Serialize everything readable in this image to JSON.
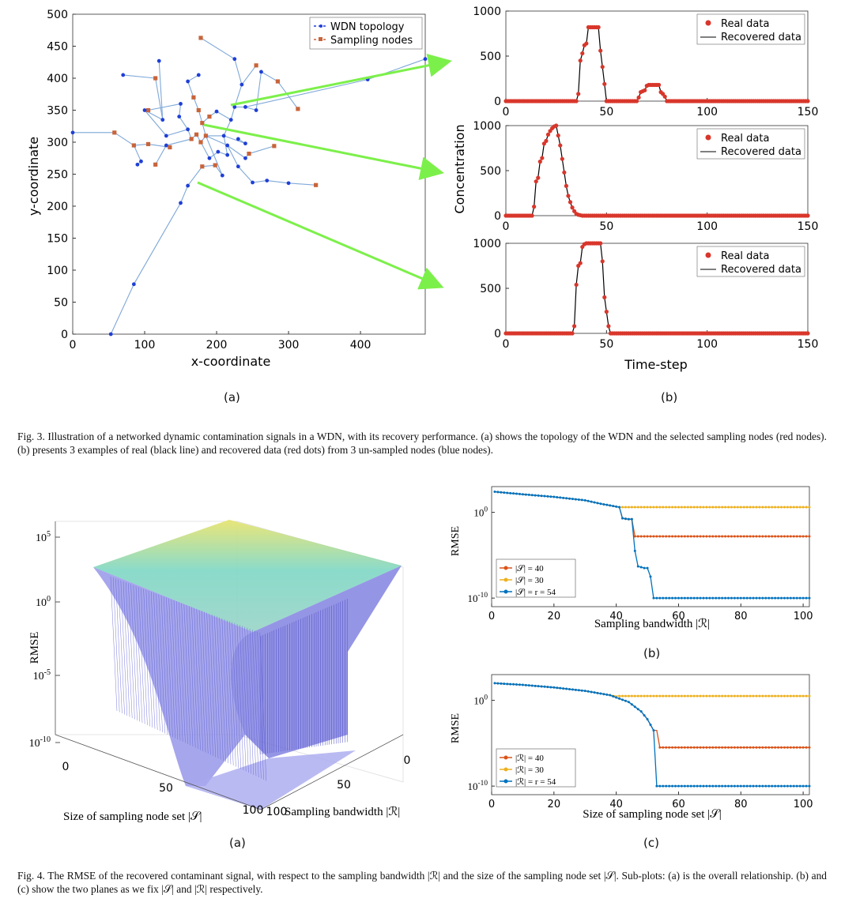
{
  "fig3": {
    "sub_a_label": "(a)",
    "sub_b_label": "(b)",
    "caption": "Fig. 3.  Illustration of a networked dynamic contamination signals in a WDN, with its recovery performance. (a) shows the topology of the WDN and the selected sampling nodes (red nodes). (b) presents 3 examples of real (black line) and recovered data (red dots) from 3 un-sampled nodes (blue nodes).",
    "topology": {
      "xlabel": "x-coordinate",
      "ylabel": "y-coordinate",
      "legend": [
        "WDN topology",
        "Sampling nodes"
      ],
      "xticks": [
        "0",
        "100",
        "200",
        "300",
        "400"
      ],
      "yticks": [
        "0",
        "50",
        "100",
        "150",
        "200",
        "250",
        "300",
        "350",
        "400",
        "450",
        "500"
      ],
      "colors": {
        "blue": "#1f3fd6",
        "red": "#c8643a",
        "line": "#7fa8d8",
        "arrow": "#7cf04a"
      }
    },
    "concentration": {
      "ylabel": "Concentration",
      "xlabel": "Time-step",
      "legend": [
        "Real data",
        "Recovered data"
      ],
      "xticks": [
        "0",
        "50",
        "100",
        "150"
      ],
      "yticks": [
        "0",
        "500",
        "1000"
      ]
    }
  },
  "fig4": {
    "sub_a_label": "(a)",
    "sub_b_label": "(b)",
    "sub_c_label": "(c)",
    "caption": "Fig. 4.  The RMSE of the recovered contaminant signal, with respect to the sampling bandwidth |ℛ| and the size of the sampling node set |𝒮|. Sub-plots: (a) is the overall relationship. (b) and (c) show the two planes as we fix |𝒮| and |ℛ| respectively.",
    "surface": {
      "zlabel": "RMSE",
      "zticks": [
        "10^5",
        "10^0",
        "10^-5",
        "10^-10"
      ],
      "xlabel": "Size of sampling node set |𝒮|",
      "ylabel": "Sampling bandwidth |ℛ|",
      "left_ticks": [
        "0",
        "50",
        "100"
      ],
      "right_ticks": [
        "0",
        "50",
        "100"
      ]
    },
    "plot_b": {
      "ylabel": "RMSE",
      "xlabel": "Sampling bandwidth |ℛ|",
      "legend": [
        "|𝒮| = 40",
        "|𝒮| = 30",
        "|𝒮| = r = 54"
      ],
      "xticks": [
        "0",
        "20",
        "40",
        "60",
        "80",
        "100"
      ],
      "yticks": [
        "10^0",
        "10^-10"
      ]
    },
    "plot_c": {
      "ylabel": "RMSE",
      "xlabel": "Size of sampling node set |𝒮|",
      "legend": [
        "|ℛ| = 40",
        "|ℛ| = 30",
        "|ℛ| = r = 54"
      ],
      "xticks": [
        "0",
        "20",
        "40",
        "60",
        "80",
        "100"
      ],
      "yticks": [
        "10^0",
        "10^-10"
      ]
    },
    "colors": {
      "s40": "#d95319",
      "s30": "#edb120",
      "s54": "#0072bd"
    }
  },
  "chart_data": [
    {
      "type": "line",
      "title": "",
      "xlabel": "Time-step",
      "ylabel": "Concentration",
      "xlim": [
        0,
        150
      ],
      "ylim": [
        0,
        1000
      ],
      "series": [
        {
          "name": "Real data",
          "x": [
            0,
            35,
            36,
            37,
            38,
            39,
            40,
            41,
            42,
            43,
            44,
            45,
            46,
            47,
            48,
            49,
            50,
            65,
            66,
            67,
            68,
            69,
            70,
            71,
            72,
            73,
            74,
            75,
            76,
            77,
            78,
            79,
            80,
            150
          ],
          "values": [
            0,
            0,
            80,
            450,
            530,
            620,
            640,
            820,
            820,
            820,
            820,
            820,
            820,
            560,
            380,
            190,
            0,
            0,
            40,
            100,
            110,
            120,
            170,
            180,
            180,
            180,
            180,
            180,
            180,
            100,
            80,
            50,
            0,
            0
          ]
        },
        {
          "name": "Recovered data",
          "x": [
            0,
            35,
            36,
            37,
            38,
            39,
            40,
            41,
            42,
            43,
            44,
            45,
            46,
            47,
            48,
            49,
            50,
            65,
            66,
            67,
            68,
            69,
            70,
            71,
            72,
            73,
            74,
            75,
            76,
            77,
            78,
            79,
            80,
            150
          ],
          "values": [
            0,
            0,
            80,
            450,
            530,
            620,
            640,
            820,
            820,
            820,
            820,
            820,
            820,
            560,
            380,
            190,
            0,
            0,
            40,
            100,
            110,
            120,
            170,
            180,
            180,
            180,
            180,
            180,
            180,
            100,
            80,
            50,
            0,
            0
          ]
        }
      ]
    },
    {
      "type": "line",
      "xlabel": "Time-step",
      "ylabel": "Concentration",
      "xlim": [
        0,
        150
      ],
      "ylim": [
        0,
        1000
      ],
      "series": [
        {
          "name": "Real data",
          "x": [
            0,
            13,
            14,
            15,
            16,
            17,
            18,
            19,
            20,
            21,
            22,
            23,
            24,
            25,
            26,
            27,
            28,
            29,
            30,
            31,
            32,
            33,
            34,
            35,
            36,
            37,
            38,
            150
          ],
          "values": [
            0,
            0,
            100,
            380,
            420,
            600,
            640,
            800,
            830,
            900,
            940,
            970,
            990,
            1000,
            890,
            780,
            630,
            480,
            330,
            220,
            150,
            90,
            50,
            20,
            10,
            5,
            0,
            0
          ]
        },
        {
          "name": "Recovered data",
          "x": [
            0,
            13,
            14,
            15,
            16,
            17,
            18,
            19,
            20,
            21,
            22,
            23,
            24,
            25,
            26,
            27,
            28,
            29,
            30,
            31,
            32,
            33,
            34,
            35,
            36,
            37,
            38,
            150
          ],
          "values": [
            0,
            0,
            100,
            380,
            420,
            600,
            640,
            800,
            830,
            900,
            940,
            970,
            990,
            1000,
            890,
            780,
            630,
            480,
            330,
            220,
            150,
            90,
            50,
            20,
            10,
            5,
            0,
            0
          ]
        }
      ]
    },
    {
      "type": "line",
      "xlabel": "Time-step",
      "ylabel": "Concentration",
      "xlim": [
        0,
        150
      ],
      "ylim": [
        0,
        1000
      ],
      "series": [
        {
          "name": "Real data",
          "x": [
            0,
            33,
            34,
            35,
            36,
            37,
            38,
            39,
            40,
            41,
            42,
            43,
            44,
            45,
            46,
            47,
            48,
            49,
            50,
            51,
            52,
            150
          ],
          "values": [
            0,
            0,
            80,
            540,
            750,
            780,
            960,
            990,
            1000,
            1000,
            1000,
            1000,
            1000,
            1000,
            1000,
            1000,
            800,
            400,
            240,
            80,
            0,
            0
          ]
        },
        {
          "name": "Recovered data",
          "x": [
            0,
            33,
            34,
            35,
            36,
            37,
            38,
            39,
            40,
            41,
            42,
            43,
            44,
            45,
            46,
            47,
            48,
            49,
            50,
            51,
            52,
            150
          ],
          "values": [
            0,
            0,
            80,
            540,
            750,
            780,
            960,
            990,
            1000,
            1000,
            1000,
            1000,
            1000,
            1000,
            1000,
            1000,
            800,
            400,
            240,
            80,
            0,
            0
          ]
        }
      ]
    },
    {
      "type": "line",
      "xlabel": "Sampling bandwidth |ℛ|",
      "ylabel": "RMSE",
      "xlim": [
        0,
        102
      ],
      "ylim_log10": [
        -11,
        3
      ],
      "yscale": "log",
      "series": [
        {
          "name": "|𝒮| = 40",
          "x": [
            1,
            10,
            20,
            30,
            35,
            41,
            42,
            44,
            45,
            46,
            102
          ],
          "log10": [
            2.4,
            2.1,
            1.8,
            1.4,
            1.0,
            0.6,
            -0.7,
            -0.8,
            -0.8,
            -2.8,
            -2.8
          ]
        },
        {
          "name": "|𝒮| = 30",
          "x": [
            1,
            10,
            20,
            30,
            35,
            41,
            102
          ],
          "log10": [
            2.4,
            2.1,
            1.8,
            1.4,
            1.0,
            0.6,
            0.6
          ]
        },
        {
          "name": "|𝒮| = r = 54",
          "x": [
            1,
            10,
            20,
            30,
            35,
            41,
            42,
            44,
            45,
            46,
            47,
            49,
            50,
            51,
            52,
            102
          ],
          "log10": [
            2.4,
            2.1,
            1.8,
            1.4,
            1.0,
            0.6,
            -0.7,
            -0.8,
            -0.8,
            -4.5,
            -6.3,
            -6.5,
            -6.5,
            -7.5,
            -10.0,
            -10.0
          ]
        }
      ]
    },
    {
      "type": "line",
      "xlabel": "Size of sampling node set |𝒮|",
      "ylabel": "RMSE",
      "xlim": [
        0,
        102
      ],
      "ylim_log10": [
        -11,
        3
      ],
      "yscale": "log",
      "series": [
        {
          "name": "|ℛ| = 40",
          "x": [
            1,
            10,
            20,
            30,
            38,
            44,
            48,
            50,
            52,
            53,
            54,
            102
          ],
          "log10": [
            2.0,
            1.8,
            1.5,
            1.1,
            0.6,
            -0.2,
            -1.3,
            -2.2,
            -3.5,
            -3.5,
            -5.5,
            -5.5
          ]
        },
        {
          "name": "|ℛ| = 30",
          "x": [
            1,
            10,
            20,
            30,
            40,
            102
          ],
          "log10": [
            2.0,
            1.8,
            1.5,
            1.1,
            0.5,
            0.5
          ]
        },
        {
          "name": "|ℛ| = r = 54",
          "x": [
            1,
            10,
            20,
            30,
            38,
            44,
            48,
            50,
            52,
            53,
            102
          ],
          "log10": [
            2.0,
            1.8,
            1.5,
            1.1,
            0.6,
            -0.2,
            -1.3,
            -2.2,
            -3.5,
            -10.0,
            -10.0
          ]
        }
      ]
    }
  ]
}
